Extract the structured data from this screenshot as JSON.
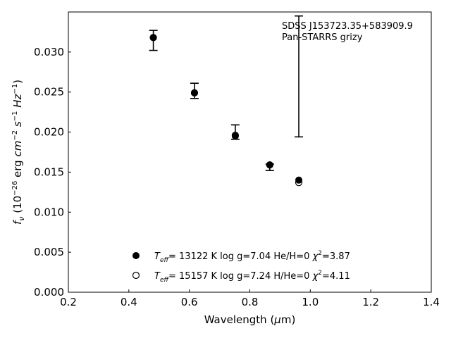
{
  "chart_data": {
    "type": "scatter",
    "title": "",
    "xlabel": "Wavelength (μm)",
    "ylabel": "fν (10⁻²⁶ erg cm⁻² s⁻¹ Hz⁻¹)",
    "xlim": [
      0.2,
      1.4
    ],
    "ylim": [
      0.0,
      0.035
    ],
    "xticks": [
      "0.2",
      "0.4",
      "0.6",
      "0.8",
      "1.0",
      "1.2",
      "1.4"
    ],
    "yticks": [
      "0.000",
      "0.005",
      "0.010",
      "0.015",
      "0.020",
      "0.025",
      "0.030"
    ],
    "grid": false,
    "annotations": [
      "SDSS J153723.35+583909.9",
      "Pan-STARRS grizy"
    ],
    "observed": {
      "x": [
        0.481,
        0.617,
        0.752,
        0.866,
        0.962
      ],
      "y": [
        0.0316,
        0.0252,
        0.02,
        0.0156,
        0.0345
      ],
      "yerr_low": [
        0.0014,
        0.001,
        0.0009,
        0.0004,
        0.0151
      ],
      "yerr_high": [
        0.0011,
        0.0009,
        0.0009,
        0.0004,
        0.0
      ]
    },
    "series": [
      {
        "name": "T_eff= 13122 K  log g=7.04  He/H=0  χ²=3.87",
        "marker": "filled-circle",
        "x": [
          0.481,
          0.617,
          0.752,
          0.866,
          0.962
        ],
        "y": [
          0.0318,
          0.0249,
          0.0195,
          0.0159,
          0.014
        ]
      },
      {
        "name": "T_eff= 15157 K  log g=7.24  H/He=0  χ²=4.11",
        "marker": "open-circle",
        "x": [
          0.481,
          0.617,
          0.752,
          0.866,
          0.962
        ],
        "y": [
          0.0318,
          0.0249,
          0.0196,
          0.0159,
          0.0137
        ]
      }
    ],
    "legend": {
      "placement": "lower-center",
      "entries": [
        {
          "teff_value": "= 13122 K  log g=7.04  He/H=0  ",
          "chi_value": "=3.87"
        },
        {
          "teff_value": "= 15157 K  log g=7.24  H/He=0  ",
          "chi_value": "=4.11"
        }
      ]
    }
  }
}
